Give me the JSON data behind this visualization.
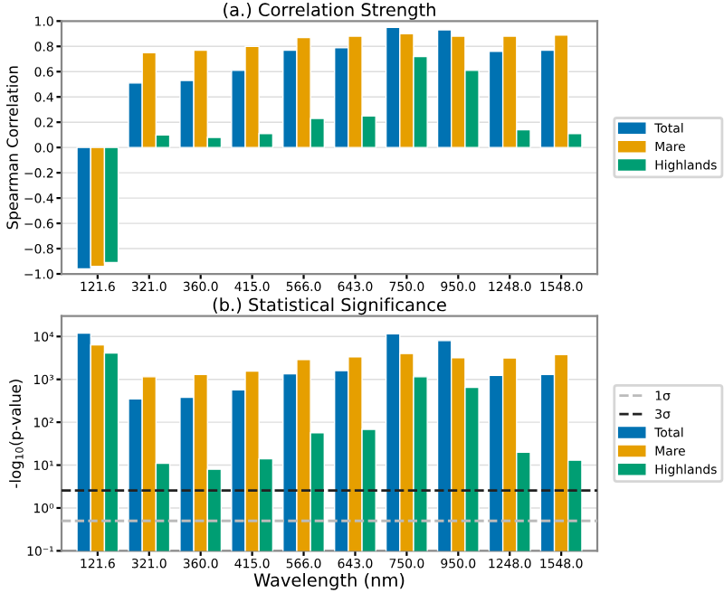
{
  "chart_data": [
    {
      "type": "bar",
      "title": "(a.) Correlation Strength",
      "ylabel": "Spearman Correlation",
      "categories": [
        "121.6",
        "321.0",
        "360.0",
        "415.0",
        "566.0",
        "643.0",
        "750.0",
        "950.0",
        "1248.0",
        "1548.0"
      ],
      "series": [
        {
          "name": "Total",
          "color": "#0072b2",
          "values": [
            -0.96,
            0.51,
            0.53,
            0.61,
            0.77,
            0.79,
            0.95,
            0.93,
            0.76,
            0.77
          ]
        },
        {
          "name": "Mare",
          "color": "#e69f00",
          "values": [
            -0.94,
            0.75,
            0.77,
            0.8,
            0.87,
            0.88,
            0.9,
            0.88,
            0.88,
            0.89
          ]
        },
        {
          "name": "Highlands",
          "color": "#009e73",
          "values": [
            -0.91,
            0.1,
            0.08,
            0.11,
            0.23,
            0.25,
            0.72,
            0.61,
            0.14,
            0.11
          ]
        }
      ],
      "ylim": [
        -1.0,
        1.0
      ],
      "yticks": [
        {
          "value": -1.0,
          "label": "−1.0"
        },
        {
          "value": -0.8,
          "label": "−0.8"
        },
        {
          "value": -0.6,
          "label": "−0.6"
        },
        {
          "value": -0.4,
          "label": "−0.4"
        },
        {
          "value": -0.2,
          "label": "−0.2"
        },
        {
          "value": 0,
          "label": "0.0"
        },
        0.2,
        0.4,
        0.6,
        0.8,
        {
          "value": 1,
          "label": "1.0"
        }
      ],
      "grid": "y",
      "legend": "right"
    },
    {
      "type": "bar",
      "title": "(b.) Statistical Significance",
      "xlabel": "Wavelength (nm)",
      "ylabel": "-log$_{10}$(p-value)",
      "categories": [
        "121.6",
        "321.0",
        "360.0",
        "415.0",
        "566.0",
        "643.0",
        "750.0",
        "950.0",
        "1248.0",
        "1548.0"
      ],
      "series": [
        {
          "name": "Total",
          "color": "#0072b2",
          "values": [
            12000,
            350,
            380,
            570,
            1350,
            1600,
            11500,
            8000,
            1240,
            1300
          ]
        },
        {
          "name": "Mare",
          "color": "#e69f00",
          "values": [
            6400,
            1150,
            1300,
            1550,
            2900,
            3350,
            4000,
            3200,
            3150,
            3800
          ]
        },
        {
          "name": "Highlands",
          "color": "#009e73",
          "values": [
            4100,
            11,
            8,
            14,
            57,
            68,
            1150,
            650,
            20,
            13
          ]
        }
      ],
      "log": "y",
      "ylim": [
        0.1,
        30000
      ],
      "yticks": [
        {
          "value": 0.1,
          "label": "10⁻¹"
        },
        {
          "value": 1,
          "label": "10⁰"
        },
        {
          "value": 10,
          "label": "10¹"
        },
        {
          "value": 100,
          "label": "10²"
        },
        {
          "value": 1000,
          "label": "10³"
        },
        {
          "value": 10000,
          "label": "10⁴"
        }
      ],
      "ref_lines": [
        {
          "axis": "y",
          "value": 0.5,
          "label": "1σ",
          "color": "#bbbbbb",
          "line_style": "dashed"
        },
        {
          "axis": "y",
          "value": 2.57,
          "label": "3σ",
          "color": "#222222",
          "line_style": "dashed"
        }
      ],
      "grid": "y",
      "legend": "right"
    }
  ]
}
